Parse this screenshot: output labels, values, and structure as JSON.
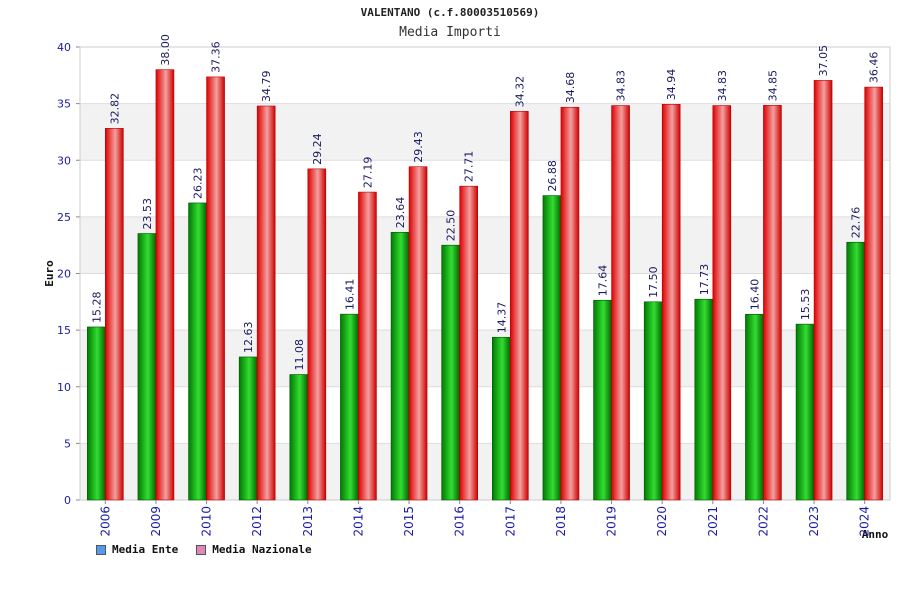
{
  "chart_data": {
    "type": "bar",
    "title": "VALENTANO (c.f.80003510569)",
    "subtitle": "Media Importi",
    "xlabel": "Anno",
    "ylabel": "Euro",
    "ylim": [
      0,
      40
    ],
    "yticks": [
      0,
      5,
      10,
      15,
      20,
      25,
      30,
      35,
      40
    ],
    "grid": true,
    "legend_position": "bottom-left",
    "categories": [
      "2006",
      "2009",
      "2010",
      "2012",
      "2013",
      "2014",
      "2015",
      "2016",
      "2017",
      "2018",
      "2019",
      "2020",
      "2021",
      "2022",
      "2023",
      "2024"
    ],
    "series": [
      {
        "name": "Media Ente",
        "color": "#00aa00",
        "legend_color": "#5599ee",
        "values": [
          15.28,
          23.53,
          26.23,
          12.63,
          11.08,
          16.41,
          23.64,
          22.5,
          14.37,
          26.88,
          17.64,
          17.5,
          17.73,
          16.4,
          15.53,
          22.76
        ],
        "labels": [
          "15.28",
          "23.53",
          "26.23",
          "12.63",
          "11.08",
          "16.41",
          "23.64",
          "22.50",
          "14.37",
          "26.88",
          "17.64",
          "17.50",
          "17.73",
          "16.40",
          "15.53",
          "22.76"
        ]
      },
      {
        "name": "Media Nazionale",
        "color": "#ee1111",
        "legend_color": "#dd88bb",
        "values": [
          32.82,
          38.0,
          37.36,
          34.79,
          29.24,
          27.19,
          29.43,
          27.71,
          34.32,
          34.68,
          34.83,
          34.94,
          34.83,
          34.85,
          37.05,
          36.46
        ],
        "labels": [
          "32.82",
          "38.00",
          "37.36",
          "34.79",
          "29.24",
          "27.19",
          "29.43",
          "27.71",
          "34.32",
          "34.68",
          "34.83",
          "34.94",
          "34.83",
          "34.85",
          "37.05",
          "36.46"
        ]
      }
    ]
  }
}
